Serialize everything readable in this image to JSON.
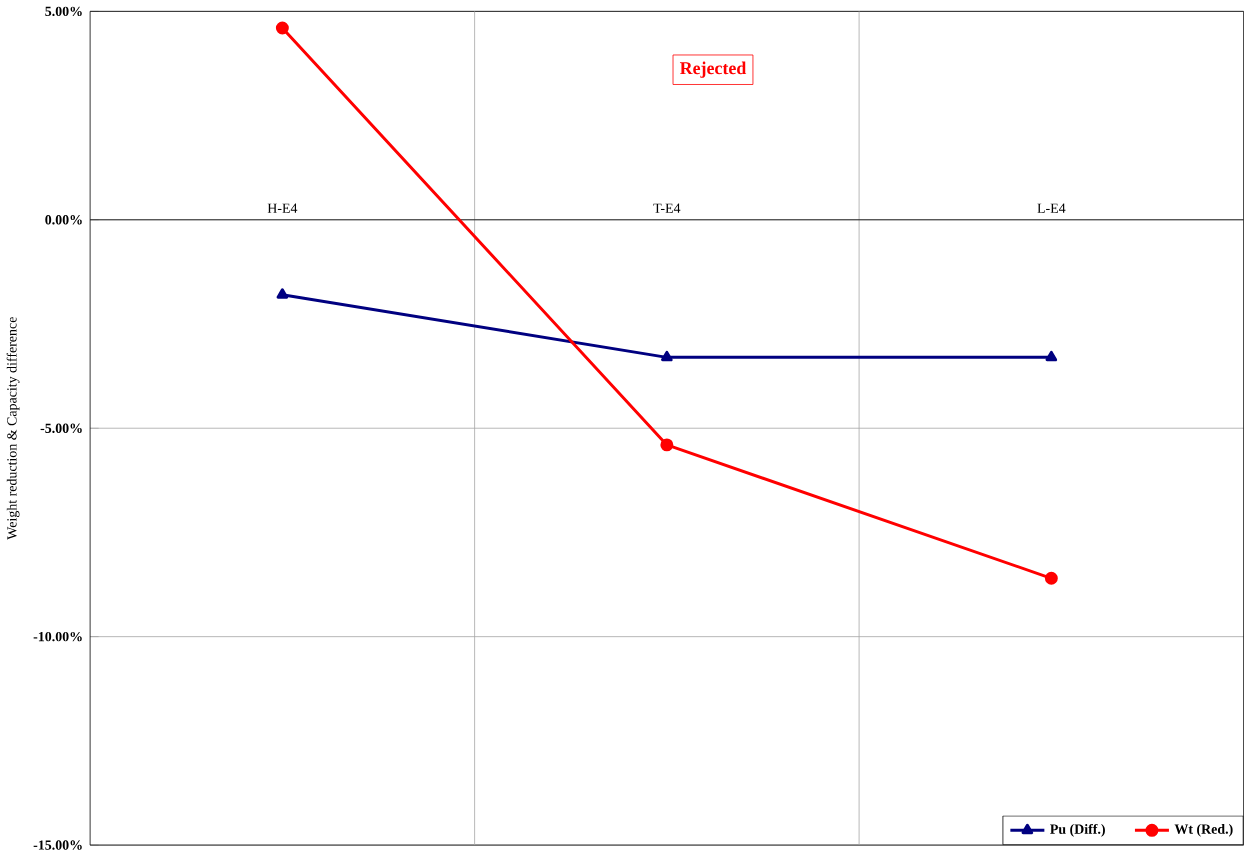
{
  "chart_data": {
    "type": "line",
    "ylabel": "Weight reduction & Capacity difference",
    "categories": [
      "H-E4",
      "T-E4",
      "L-E4"
    ],
    "series": [
      {
        "name": "Pu (Diff.)",
        "color": "#000080",
        "marker": "triangle",
        "values": [
          -1.8,
          -3.3,
          -3.3
        ]
      },
      {
        "name": "Wt (Red.)",
        "color": "#ff0000",
        "marker": "circle",
        "values": [
          4.6,
          -5.4,
          -8.6
        ]
      }
    ],
    "ylim": [
      -15,
      5
    ],
    "yticks": [
      {
        "value": -15,
        "label": "-15.00%"
      },
      {
        "value": -10,
        "label": "-10.00%"
      },
      {
        "value": -5,
        "label": "-5.00%"
      },
      {
        "value": 0,
        "label": "0.00%"
      },
      {
        "value": 5,
        "label": "5.00%"
      }
    ],
    "grid": true,
    "legend": "bottom right",
    "annotations": [
      "Rejected"
    ]
  }
}
